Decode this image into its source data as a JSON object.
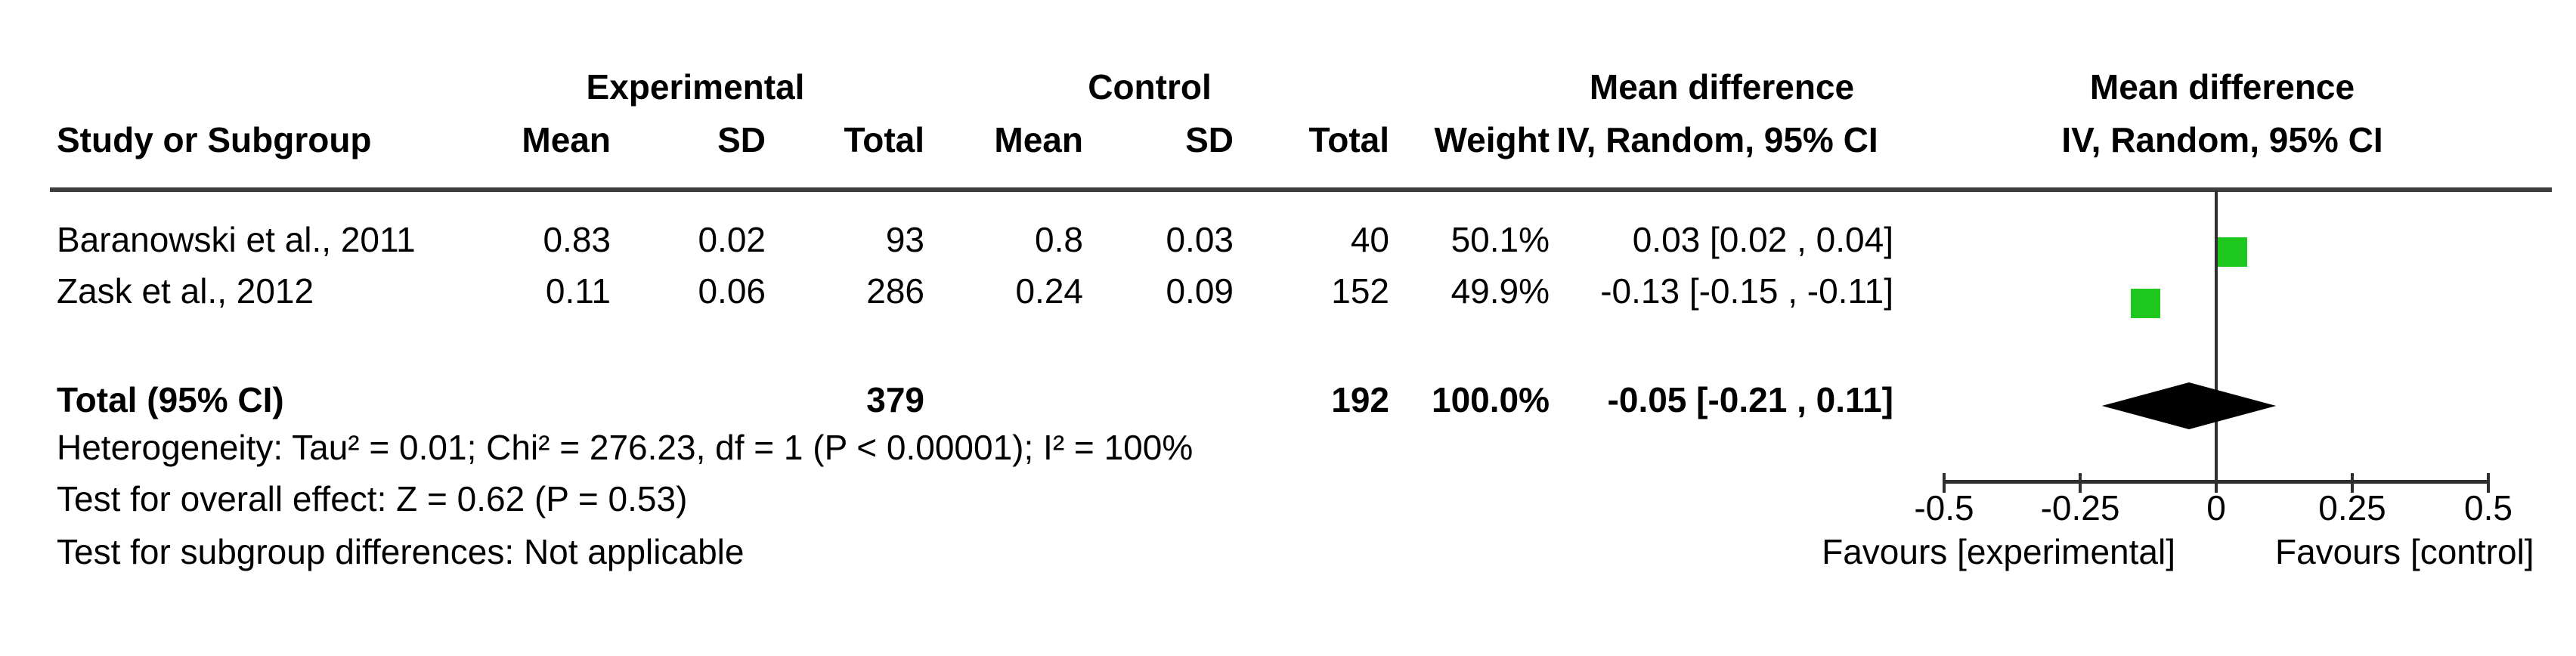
{
  "table": {
    "group_headers": {
      "experimental": "Experimental",
      "control": "Control",
      "mean_difference_text": "Mean difference",
      "mean_difference_plot": "Mean difference"
    },
    "column_headers": {
      "study": "Study or Subgroup",
      "mean_exp": "Mean",
      "sd_exp": "SD",
      "total_exp": "Total",
      "mean_ctrl": "Mean",
      "sd_ctrl": "SD",
      "total_ctrl": "Total",
      "weight": "Weight",
      "ci_text": "IV, Random, 95% CI",
      "ci_plot": "IV, Random, 95% CI"
    },
    "rows": [
      {
        "study": "Baranowski et al., 2011",
        "mean_exp": "0.83",
        "sd_exp": "0.02",
        "total_exp": "93",
        "mean_ctrl": "0.8",
        "sd_ctrl": "0.03",
        "total_ctrl": "40",
        "weight": "50.1%",
        "ci": "0.03 [0.02 , 0.04]"
      },
      {
        "study": "Zask et al., 2012",
        "mean_exp": "0.11",
        "sd_exp": "0.06",
        "total_exp": "286",
        "mean_ctrl": "0.24",
        "sd_ctrl": "0.09",
        "total_ctrl": "152",
        "weight": "49.9%",
        "ci": "-0.13 [-0.15 , -0.11]"
      }
    ],
    "total_row": {
      "label": "Total (95% CI)",
      "total_exp": "379",
      "total_ctrl": "192",
      "weight": "100.0%",
      "ci": "-0.05 [-0.21 , 0.11]"
    },
    "footnotes": {
      "heterogeneity": "Heterogeneity: Tau² = 0.01; Chi² = 276.23, df = 1 (P < 0.00001); I² = 100%",
      "overall_effect": "Test for overall effect: Z = 0.62 (P = 0.53)",
      "subgroup": "Test for subgroup differences: Not applicable"
    }
  },
  "chart_data": {
    "type": "forest",
    "effect_measure": "Mean difference",
    "model": "IV, Random, 95% CI",
    "x_axis": {
      "range": [
        -0.5,
        0.5
      ],
      "ticks": [
        -0.5,
        -0.25,
        0,
        0.25,
        0.5
      ],
      "tick_labels": [
        "-0.5",
        "-0.25",
        "0",
        "0.25",
        "0.5"
      ],
      "label_left": "Favours [experimental]",
      "label_right": "Favours [control]"
    },
    "studies": [
      {
        "name": "Baranowski et al., 2011",
        "md": 0.03,
        "ci_low": 0.02,
        "ci_high": 0.04,
        "weight_pct": 50.1
      },
      {
        "name": "Zask et al., 2012",
        "md": -0.13,
        "ci_low": -0.15,
        "ci_high": -0.11,
        "weight_pct": 49.9
      }
    ],
    "total": {
      "label": "Total (95% CI)",
      "md": -0.05,
      "ci_low": -0.21,
      "ci_high": 0.11,
      "weight_pct": 100.0
    },
    "marker_color": "#1EC81E",
    "diamond_color": "#000000",
    "legend_position": "none",
    "grid": false
  }
}
